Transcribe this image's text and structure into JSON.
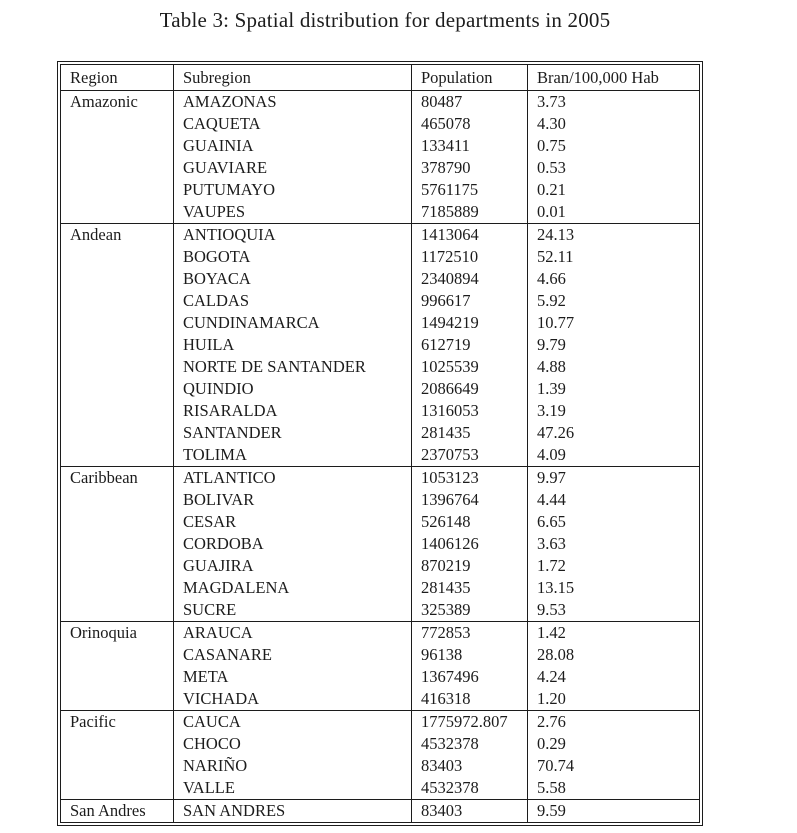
{
  "title": "Table 3: Spatial distribution for departments in 2005",
  "colors": {
    "background": "#ffffff",
    "text": "#1c1c1c",
    "rule": "#1c1c1c"
  },
  "table": {
    "headers": [
      "Region",
      "Subregion",
      "Population",
      "Bran/100,000 Hab"
    ],
    "groups": [
      {
        "region": "Amazonic",
        "rows": [
          {
            "subregion": "AMAZONAS",
            "population": "80487",
            "bran": "3.73"
          },
          {
            "subregion": "CAQUETA",
            "population": "465078",
            "bran": "4.30"
          },
          {
            "subregion": "GUAINIA",
            "population": "133411",
            "bran": "0.75"
          },
          {
            "subregion": "GUAVIARE",
            "population": "378790",
            "bran": "0.53"
          },
          {
            "subregion": "PUTUMAYO",
            "population": "5761175",
            "bran": "0.21"
          },
          {
            "subregion": "VAUPES",
            "population": "7185889",
            "bran": "0.01"
          }
        ]
      },
      {
        "region": "Andean",
        "rows": [
          {
            "subregion": "ANTIOQUIA",
            "population": "1413064",
            "bran": "24.13"
          },
          {
            "subregion": "BOGOTA",
            "population": "1172510",
            "bran": "52.11"
          },
          {
            "subregion": "BOYACA",
            "population": "2340894",
            "bran": "4.66"
          },
          {
            "subregion": "CALDAS",
            "population": "996617",
            "bran": "5.92"
          },
          {
            "subregion": "CUNDINAMARCA",
            "population": "1494219",
            "bran": "10.77"
          },
          {
            "subregion": "HUILA",
            "population": "612719",
            "bran": "9.79"
          },
          {
            "subregion": "NORTE DE SANTANDER",
            "population": "1025539",
            "bran": "4.88"
          },
          {
            "subregion": "QUINDIO",
            "population": "2086649",
            "bran": "1.39"
          },
          {
            "subregion": "RISARALDA",
            "population": "1316053",
            "bran": "3.19"
          },
          {
            "subregion": "SANTANDER",
            "population": "281435",
            "bran": "47.26"
          },
          {
            "subregion": "TOLIMA",
            "population": "2370753",
            "bran": "4.09"
          }
        ]
      },
      {
        "region": "Caribbean",
        "rows": [
          {
            "subregion": "ATLANTICO",
            "population": "1053123",
            "bran": "9.97"
          },
          {
            "subregion": "BOLIVAR",
            "population": "1396764",
            "bran": "4.44"
          },
          {
            "subregion": "CESAR",
            "population": "526148",
            "bran": "6.65"
          },
          {
            "subregion": "CORDOBA",
            "population": "1406126",
            "bran": "3.63"
          },
          {
            "subregion": "GUAJIRA",
            "population": "870219",
            "bran": "1.72"
          },
          {
            "subregion": "MAGDALENA",
            "population": "281435",
            "bran": "13.15"
          },
          {
            "subregion": "SUCRE",
            "population": "325389",
            "bran": "9.53"
          }
        ]
      },
      {
        "region": "Orinoquia",
        "rows": [
          {
            "subregion": "ARAUCA",
            "population": "772853",
            "bran": "1.42"
          },
          {
            "subregion": "CASANARE",
            "population": "96138",
            "bran": "28.08"
          },
          {
            "subregion": "META",
            "population": "1367496",
            "bran": "4.24"
          },
          {
            "subregion": "VICHADA",
            "population": "416318",
            "bran": "1.20"
          }
        ]
      },
      {
        "region": "Pacific",
        "rows": [
          {
            "subregion": "CAUCA",
            "population": "1775972.807",
            "bran": "2.76"
          },
          {
            "subregion": "CHOCO",
            "population": "4532378",
            "bran": "0.29"
          },
          {
            "subregion": "NARIÑO",
            "population": "83403",
            "bran": "70.74"
          },
          {
            "subregion": "VALLE",
            "population": "4532378",
            "bran": "5.58"
          }
        ]
      },
      {
        "region": "San Andres",
        "rows": [
          {
            "subregion": "SAN ANDRES",
            "population": "83403",
            "bran": "9.59"
          }
        ]
      }
    ]
  }
}
